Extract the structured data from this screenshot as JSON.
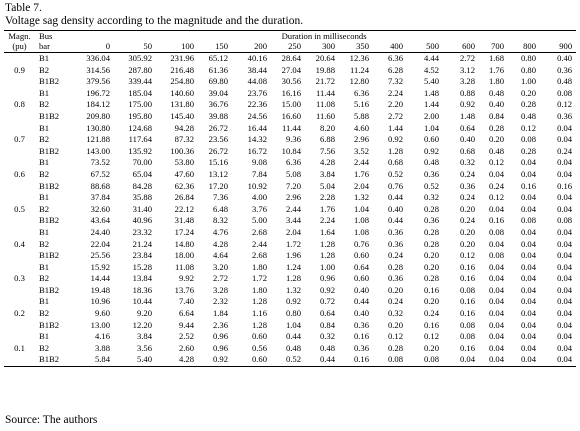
{
  "caption": {
    "table_label": "Table 7.",
    "title": "Voltage sag density according to the magnitude and the duration."
  },
  "source": "Source: The authors",
  "headers": {
    "magnitude_line1": "Magn.",
    "magnitude_line2": "(pu)",
    "bus_line1": "Bus",
    "bus_line2": "bar",
    "duration_group": "Duration in milliseconds",
    "durations": [
      "0",
      "50",
      "100",
      "150",
      "200",
      "250",
      "300",
      "350",
      "400",
      "500",
      "600",
      "700",
      "800",
      "900"
    ]
  },
  "groups": [
    {
      "magnitude": "0.9",
      "rows": [
        {
          "bus": "B1",
          "values": [
            "336.04",
            "305.92",
            "231.96",
            "65.12",
            "40.16",
            "28.64",
            "20.64",
            "12.36",
            "6.36",
            "4.44",
            "2.72",
            "1.68",
            "0.80",
            "0.40"
          ]
        },
        {
          "bus": "B2",
          "values": [
            "314.56",
            "287.80",
            "216.48",
            "61.36",
            "38.44",
            "27.04",
            "19.88",
            "11.24",
            "6.28",
            "4.52",
            "3.12",
            "1.76",
            "0.80",
            "0.36"
          ]
        },
        {
          "bus": "B1B2",
          "values": [
            "379.56",
            "339.44",
            "254.80",
            "69.80",
            "44.08",
            "30.56",
            "21.72",
            "12.80",
            "7.32",
            "5.40",
            "3.28",
            "1.80",
            "1.00",
            "0.48"
          ]
        }
      ]
    },
    {
      "magnitude": "0.8",
      "rows": [
        {
          "bus": "B1",
          "values": [
            "196.72",
            "185.04",
            "140.60",
            "39.04",
            "23.76",
            "16.16",
            "11.44",
            "6.36",
            "2.24",
            "1.48",
            "0.88",
            "0.48",
            "0.20",
            "0.08"
          ]
        },
        {
          "bus": "B2",
          "values": [
            "184.12",
            "175.00",
            "131.80",
            "36.76",
            "22.36",
            "15.00",
            "11.08",
            "5.16",
            "2.20",
            "1.44",
            "0.92",
            "0.40",
            "0.28",
            "0.12"
          ]
        },
        {
          "bus": "B1B2",
          "values": [
            "209.80",
            "195.80",
            "145.40",
            "39.88",
            "24.56",
            "16.60",
            "11.60",
            "5.88",
            "2.72",
            "2.00",
            "1.48",
            "0.84",
            "0.48",
            "0.36"
          ]
        }
      ]
    },
    {
      "magnitude": "0.7",
      "rows": [
        {
          "bus": "B1",
          "values": [
            "130.80",
            "124.68",
            "94.28",
            "26.72",
            "16.44",
            "11.44",
            "8.20",
            "4.60",
            "1.44",
            "1.04",
            "0.64",
            "0.28",
            "0.12",
            "0.04"
          ]
        },
        {
          "bus": "B2",
          "values": [
            "121.88",
            "117.64",
            "87.32",
            "23.56",
            "14.32",
            "9.36",
            "6.88",
            "2.96",
            "0.92",
            "0.60",
            "0.40",
            "0.20",
            "0.08",
            "0.04"
          ]
        },
        {
          "bus": "B1B2",
          "values": [
            "143.00",
            "135.92",
            "100.36",
            "26.72",
            "16.72",
            "10.84",
            "7.56",
            "3.52",
            "1.28",
            "0.92",
            "0.68",
            "0.48",
            "0.28",
            "0.24"
          ]
        }
      ]
    },
    {
      "magnitude": "0.6",
      "rows": [
        {
          "bus": "B1",
          "values": [
            "73.52",
            "70.00",
            "53.80",
            "15.16",
            "9.08",
            "6.36",
            "4.28",
            "2.44",
            "0.68",
            "0.48",
            "0.32",
            "0.12",
            "0.04",
            "0.04"
          ]
        },
        {
          "bus": "B2",
          "values": [
            "67.52",
            "65.04",
            "47.60",
            "13.12",
            "7.84",
            "5.08",
            "3.84",
            "1.76",
            "0.52",
            "0.36",
            "0.24",
            "0.04",
            "0.04",
            "0.04"
          ]
        },
        {
          "bus": "B1B2",
          "values": [
            "88.68",
            "84.28",
            "62.36",
            "17.20",
            "10.92",
            "7.20",
            "5.04",
            "2.04",
            "0.76",
            "0.52",
            "0.36",
            "0.24",
            "0.16",
            "0.16"
          ]
        }
      ]
    },
    {
      "magnitude": "0.5",
      "rows": [
        {
          "bus": "B1",
          "values": [
            "37.84",
            "35.88",
            "26.84",
            "7.36",
            "4.00",
            "2.96",
            "2.28",
            "1.32",
            "0.44",
            "0.32",
            "0.24",
            "0.12",
            "0.04",
            "0.04"
          ]
        },
        {
          "bus": "B2",
          "values": [
            "32.60",
            "31.40",
            "22.12",
            "6.48",
            "3.76",
            "2.44",
            "1.76",
            "1.04",
            "0.40",
            "0.28",
            "0.20",
            "0.04",
            "0.04",
            "0.04"
          ]
        },
        {
          "bus": "B1B2",
          "values": [
            "43.64",
            "40.96",
            "31.48",
            "8.32",
            "5.00",
            "3.44",
            "2.24",
            "1.08",
            "0.44",
            "0.36",
            "0.24",
            "0.16",
            "0.08",
            "0.08"
          ]
        }
      ]
    },
    {
      "magnitude": "0.4",
      "rows": [
        {
          "bus": "B1",
          "values": [
            "24.40",
            "23.32",
            "17.24",
            "4.76",
            "2.68",
            "2.04",
            "1.64",
            "1.08",
            "0.36",
            "0.28",
            "0.20",
            "0.08",
            "0.04",
            "0.04"
          ]
        },
        {
          "bus": "B2",
          "values": [
            "22.04",
            "21.24",
            "14.80",
            "4.28",
            "2.44",
            "1.72",
            "1.28",
            "0.76",
            "0.36",
            "0.28",
            "0.20",
            "0.04",
            "0.04",
            "0.04"
          ]
        },
        {
          "bus": "B1B2",
          "values": [
            "25.56",
            "23.84",
            "18.00",
            "4.64",
            "2.68",
            "1.96",
            "1.28",
            "0.60",
            "0.24",
            "0.20",
            "0.12",
            "0.08",
            "0.04",
            "0.04"
          ]
        }
      ]
    },
    {
      "magnitude": "0.3",
      "rows": [
        {
          "bus": "B1",
          "values": [
            "15.92",
            "15.28",
            "11.08",
            "3.20",
            "1.80",
            "1.24",
            "1.00",
            "0.64",
            "0.28",
            "0.20",
            "0.16",
            "0.04",
            "0.04",
            "0.04"
          ]
        },
        {
          "bus": "B2",
          "values": [
            "14.44",
            "13.84",
            "9.92",
            "2.72",
            "1.72",
            "1.28",
            "0.96",
            "0.60",
            "0.36",
            "0.28",
            "0.16",
            "0.04",
            "0.04",
            "0.04"
          ]
        },
        {
          "bus": "B1B2",
          "values": [
            "19.48",
            "18.36",
            "13.76",
            "3.28",
            "1.80",
            "1.32",
            "0.92",
            "0.40",
            "0.20",
            "0.16",
            "0.08",
            "0.04",
            "0.04",
            "0.04"
          ]
        }
      ]
    },
    {
      "magnitude": "0.2",
      "rows": [
        {
          "bus": "B1",
          "values": [
            "10.96",
            "10.44",
            "7.40",
            "2.32",
            "1.28",
            "0.92",
            "0.72",
            "0.44",
            "0.24",
            "0.20",
            "0.16",
            "0.04",
            "0.04",
            "0.04"
          ]
        },
        {
          "bus": "B2",
          "values": [
            "9.60",
            "9.20",
            "6.64",
            "1.84",
            "1.16",
            "0.80",
            "0.64",
            "0.40",
            "0.32",
            "0.24",
            "0.16",
            "0.04",
            "0.04",
            "0.04"
          ]
        },
        {
          "bus": "B1B2",
          "values": [
            "13.00",
            "12.20",
            "9.44",
            "2.36",
            "1.28",
            "1.04",
            "0.84",
            "0.36",
            "0.20",
            "0.16",
            "0.08",
            "0.04",
            "0.04",
            "0.04"
          ]
        }
      ]
    },
    {
      "magnitude": "0.1",
      "rows": [
        {
          "bus": "B1",
          "values": [
            "4.16",
            "3.84",
            "2.52",
            "0.96",
            "0.60",
            "0.44",
            "0.32",
            "0.16",
            "0.12",
            "0.12",
            "0.08",
            "0.04",
            "0.04",
            "0.04"
          ]
        },
        {
          "bus": "B2",
          "values": [
            "3.88",
            "3.56",
            "2.60",
            "0.96",
            "0.56",
            "0.48",
            "0.48",
            "0.36",
            "0.28",
            "0.20",
            "0.16",
            "0.04",
            "0.04",
            "0.04"
          ]
        },
        {
          "bus": "B1B2",
          "values": [
            "5.84",
            "5.40",
            "4.28",
            "0.92",
            "0.60",
            "0.52",
            "0.44",
            "0.16",
            "0.08",
            "0.08",
            "0.04",
            "0.04",
            "0.04",
            "0.04"
          ]
        }
      ]
    }
  ]
}
